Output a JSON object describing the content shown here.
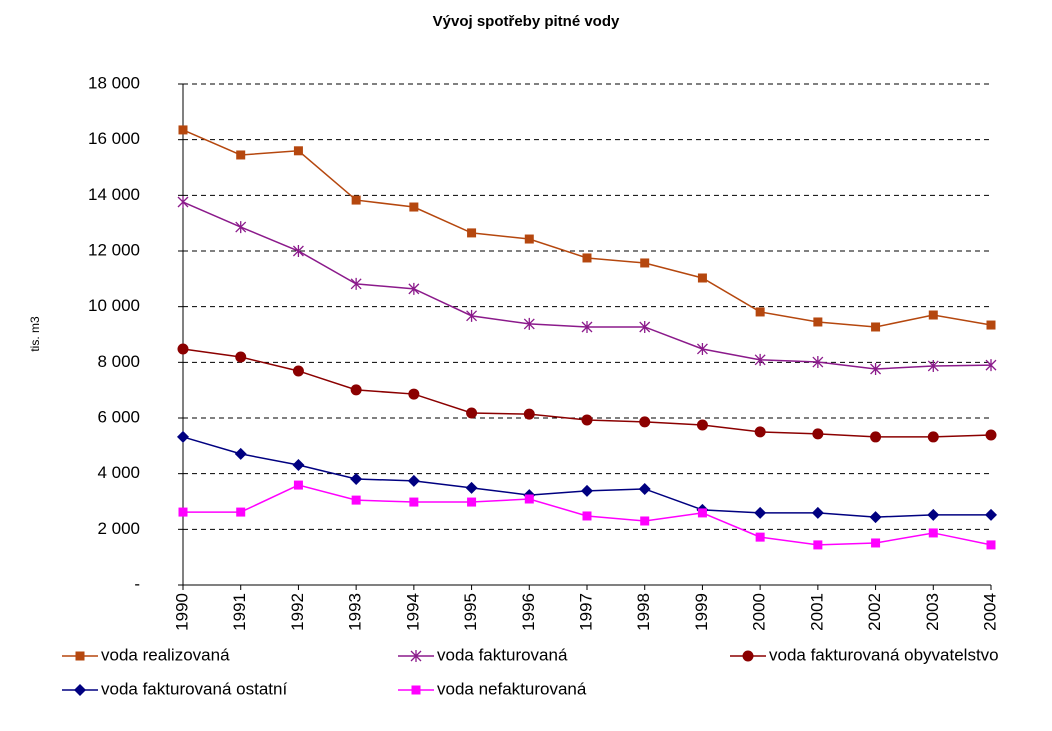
{
  "chart_data": {
    "type": "line",
    "title": "Vývoj spotřeby pitné vody",
    "y_label": "tis. m3",
    "categories": [
      "1990",
      "1991",
      "1992",
      "1993",
      "1994",
      "1995",
      "1996",
      "1997",
      "1998",
      "1999",
      "2000",
      "2001",
      "2002",
      "2003",
      "2004"
    ],
    "ylim": [
      0,
      18000
    ],
    "yticks": [
      {
        "value": 0,
        "label": "-"
      },
      {
        "value": 2000,
        "label": "2 000"
      },
      {
        "value": 4000,
        "label": "4 000"
      },
      {
        "value": 6000,
        "label": "6 000"
      },
      {
        "value": 8000,
        "label": "8 000"
      },
      {
        "value": 10000,
        "label": "10 000"
      },
      {
        "value": 12000,
        "label": "12 000"
      },
      {
        "value": 14000,
        "label": "14 000"
      },
      {
        "value": 16000,
        "label": "16 000"
      },
      {
        "value": 18000,
        "label": "18 000"
      }
    ],
    "grid": true,
    "legend": "bottom",
    "series": [
      {
        "name": "voda realizovaná",
        "color": "#b5470e",
        "marker": "square",
        "values": [
          16350,
          15450,
          15600,
          13830,
          13580,
          12650,
          12430,
          11750,
          11570,
          11030,
          9810,
          9450,
          9270,
          9700,
          9340
        ]
      },
      {
        "name": "voda fakturovaná",
        "color": "#8b1a8b",
        "marker": "asterisk",
        "values": [
          13760,
          12860,
          12000,
          10820,
          10640,
          9670,
          9380,
          9270,
          9270,
          8480,
          8090,
          8010,
          7760,
          7870,
          7900
        ]
      },
      {
        "name": "voda fakturovaná obyvatelstvo",
        "color": "#8b0000",
        "marker": "circle",
        "values": [
          8480,
          8190,
          7690,
          7010,
          6860,
          6180,
          6140,
          5930,
          5860,
          5750,
          5500,
          5430,
          5320,
          5320,
          5390
        ]
      },
      {
        "name": "voda fakturovaná ostatní",
        "color": "#000080",
        "marker": "diamond",
        "values": [
          5320,
          4710,
          4310,
          3810,
          3740,
          3490,
          3230,
          3380,
          3450,
          2700,
          2590,
          2590,
          2440,
          2520,
          2520
        ]
      },
      {
        "name": "voda nefakturovaná",
        "color": "#ff00ff",
        "marker": "square",
        "values": [
          2620,
          2620,
          3590,
          3050,
          2980,
          2980,
          3090,
          2480,
          2300,
          2590,
          1720,
          1440,
          1510,
          1870,
          1440
        ]
      }
    ]
  }
}
